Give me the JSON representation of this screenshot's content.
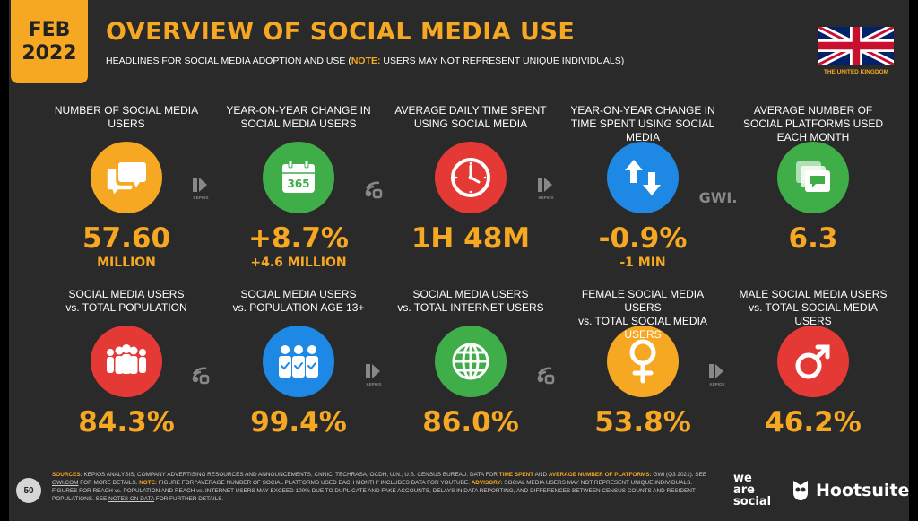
{
  "header": {
    "date_month": "FEB",
    "date_year": "2022",
    "title": "OVERVIEW OF SOCIAL MEDIA USE",
    "subtitle_main": "HEADLINES FOR SOCIAL MEDIA ADOPTION AND USE (",
    "subtitle_note_label": "NOTE:",
    "subtitle_note_text": " USERS MAY NOT REPRESENT UNIQUE INDIVIDUALS)",
    "country": "THE UNITED KINGDOM"
  },
  "row1": [
    {
      "label": "NUMBER OF SOCIAL MEDIA USERS",
      "value": "57.60",
      "sub": "MILLION",
      "color": "#f7a823",
      "icon": "chat-bubbles-icon"
    },
    {
      "label": "YEAR-ON-YEAR CHANGE IN SOCIAL MEDIA USERS",
      "value": "+8.7%",
      "sub": "+4.6 MILLION",
      "color": "#3fae49",
      "icon": "calendar-365-icon",
      "calendar_text": "365"
    },
    {
      "label": "AVERAGE DAILY TIME SPENT USING SOCIAL MEDIA",
      "value": "1H 48M",
      "sub": "",
      "color": "#e53935",
      "icon": "clock-icon"
    },
    {
      "label": "YEAR-ON-YEAR CHANGE IN TIME SPENT USING SOCIAL MEDIA",
      "value": "-0.9%",
      "sub": "-1 MIN",
      "color": "#1e88e5",
      "icon": "up-down-arrows-icon"
    },
    {
      "label": "AVERAGE NUMBER OF SOCIAL PLATFORMS USED EACH MONTH",
      "value": "6.3",
      "sub": "",
      "color": "#3fae49",
      "icon": "stacked-windows-icon"
    }
  ],
  "row2": [
    {
      "label_line1": "SOCIAL MEDIA USERS",
      "label_line2": "vs. TOTAL POPULATION",
      "value": "84.3%",
      "color": "#e53935",
      "icon": "crowd-icon"
    },
    {
      "label_line1": "SOCIAL MEDIA USERS",
      "label_line2": "vs. POPULATION AGE 13+",
      "value": "99.4%",
      "color": "#1e88e5",
      "icon": "people-check-icon"
    },
    {
      "label_line1": "SOCIAL MEDIA USERS",
      "label_line2": "vs. TOTAL INTERNET USERS",
      "value": "86.0%",
      "color": "#3fae49",
      "icon": "globe-icon"
    },
    {
      "label_line1": "FEMALE SOCIAL MEDIA USERS",
      "label_line2": "vs. TOTAL SOCIAL MEDIA USERS",
      "value": "53.8%",
      "color": "#f7a823",
      "icon": "female-symbol-icon"
    },
    {
      "label_line1": "MALE SOCIAL MEDIA USERS",
      "label_line2": "vs. TOTAL SOCIAL MEDIA USERS",
      "value": "46.2%",
      "color": "#e53935",
      "icon": "male-symbol-icon"
    }
  ],
  "sources": {
    "kepios": "KEPIOS",
    "gwi": "GWI."
  },
  "footer": {
    "page_number": "50",
    "sources_label": "SOURCES:",
    "text_1": " KEPIOS ANALYSIS; COMPANY ADVERTISING RESOURCES AND ANNOUNCEMENTS; CNNIC; TECHRASA; OCDH; U.N.; U.S. CENSUS BUREAU. DATA FOR ",
    "time_spent": "TIME SPENT",
    "text_and": " AND ",
    "avg_platforms": "AVERAGE NUMBER OF PLATFORMS:",
    "text_2": " GWI (Q3 2021). SEE ",
    "gwi_link": "GWI.COM",
    "text_3": " FOR MORE DETAILS. ",
    "note_label": "NOTE:",
    "text_4": " FIGURE FOR \"AVERAGE NUMBER OF SOCIAL PLATFORMS USED EACH MONTH\" INCLUDES DATA FOR YOUTUBE. ",
    "advisory_label": "ADVISORY:",
    "text_5": " SOCIAL MEDIA USERS MAY NOT REPRESENT UNIQUE INDIVIDUALS. FIGURES FOR REACH vs. POPULATION AND REACH vs. INTERNET USERS MAY EXCEED 100% DUE TO DUPLICATE AND FAKE ACCOUNTS, DELAYS IN DATA REPORTING, AND DIFFERENCES BETWEEN CENSUS COUNTS AND RESIDENT POPULATIONS. SEE ",
    "notes_link": "NOTES ON DATA",
    "text_6": " FOR FURTHER DETAILS."
  },
  "brands": {
    "wearesocial_1": "we",
    "wearesocial_2": "are",
    "wearesocial_3": "social",
    "hootsuite": "Hootsuite"
  }
}
